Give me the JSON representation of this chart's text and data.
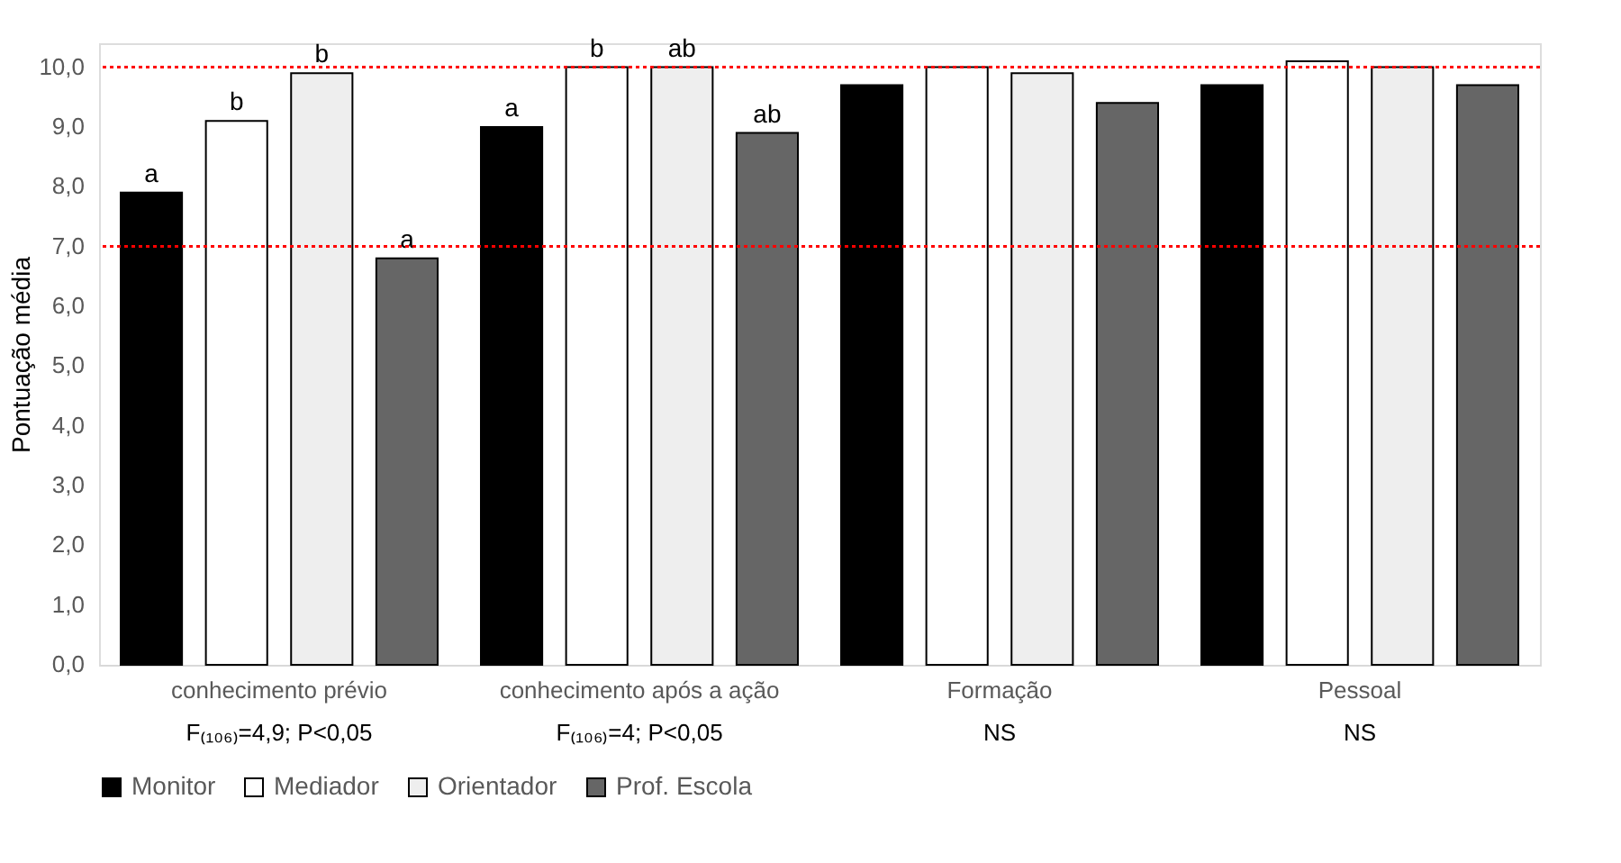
{
  "chart_data": {
    "type": "bar",
    "ylabel": "Pontuação média",
    "categories": [
      "conhecimento prévio",
      "conhecimento após a ação",
      "Formação",
      "Pessoal"
    ],
    "series": [
      {
        "name": "Monitor",
        "color": "#000000",
        "values": [
          7.9,
          9.0,
          9.7,
          9.7
        ],
        "value_labels": [
          "a",
          "a",
          null,
          null
        ]
      },
      {
        "name": "Mediador",
        "color": "#ffffff",
        "values": [
          9.1,
          10.0,
          10.0,
          10.1
        ],
        "value_labels": [
          "b",
          "b",
          null,
          null
        ]
      },
      {
        "name": "Orientador",
        "color": "#eeeeee",
        "values": [
          9.9,
          10.0,
          9.9,
          10.0
        ],
        "value_labels": [
          "b",
          "ab",
          null,
          null
        ]
      },
      {
        "name": "Prof. Escola",
        "color": "#666666",
        "values": [
          6.8,
          8.9,
          9.4,
          9.7
        ],
        "value_labels": [
          "a",
          "ab",
          null,
          null
        ]
      }
    ],
    "ylim": [
      0,
      10.4
    ],
    "yticks": [
      {
        "value": 0,
        "label": "0,0"
      },
      {
        "value": 1,
        "label": "1,0"
      },
      {
        "value": 2,
        "label": "2,0"
      },
      {
        "value": 3,
        "label": "3,0"
      },
      {
        "value": 4,
        "label": "4,0"
      },
      {
        "value": 5,
        "label": "5,0"
      },
      {
        "value": 6,
        "label": "6,0"
      },
      {
        "value": 7,
        "label": "7,0"
      },
      {
        "value": 8,
        "label": "8,0"
      },
      {
        "value": 9,
        "label": "9,0"
      },
      {
        "value": 10,
        "label": "10,0"
      }
    ],
    "ref_lines": [
      {
        "axis": "y",
        "value": 10.0,
        "color": "#ff0000",
        "line_style": "dotted"
      },
      {
        "axis": "y",
        "value": 7.0,
        "color": "#ff0000",
        "line_style": "dotted"
      }
    ],
    "annotations": [
      "F₍₁₀₆₎=4,9; P<0,05",
      "F₍₁₀₆₎=4; P<0,05",
      "NS",
      "NS"
    ],
    "grid": false,
    "legend": "bottom"
  }
}
